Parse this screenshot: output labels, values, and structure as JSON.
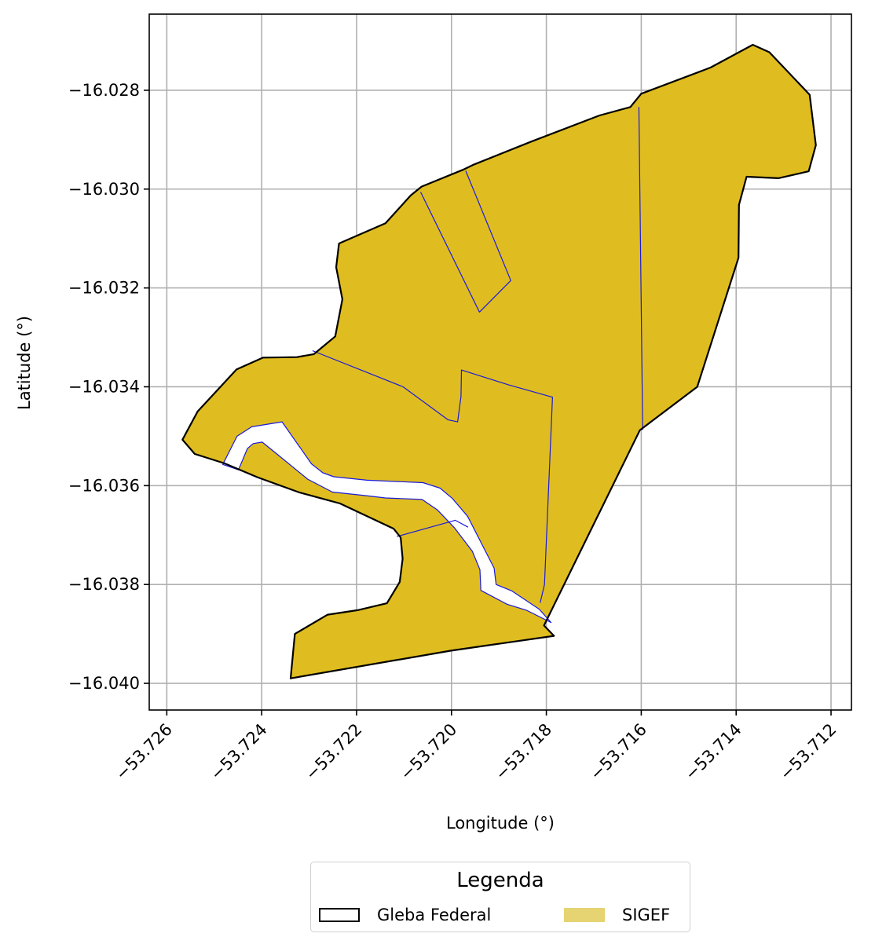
{
  "map": {
    "xlabel": "Longitude (°)",
    "ylabel": "Latitude (°)",
    "xlim": [
      -53.72637,
      -53.71157
    ],
    "ylim": [
      -16.04054,
      -16.02646
    ],
    "x_ticks": [
      {
        "value": -53.726,
        "label": "−53.726"
      },
      {
        "value": -53.724,
        "label": "−53.724"
      },
      {
        "value": -53.722,
        "label": "−53.722"
      },
      {
        "value": -53.72,
        "label": "−53.720"
      },
      {
        "value": -53.718,
        "label": "−53.718"
      },
      {
        "value": -53.716,
        "label": "−53.716"
      },
      {
        "value": -53.714,
        "label": "−53.714"
      },
      {
        "value": -53.712,
        "label": "−53.712"
      }
    ],
    "y_ticks": [
      {
        "value": -16.028,
        "label": "−16.028"
      },
      {
        "value": -16.03,
        "label": "−16.030"
      },
      {
        "value": -16.032,
        "label": "−16.032"
      },
      {
        "value": -16.034,
        "label": "−16.034"
      },
      {
        "value": -16.036,
        "label": "−16.036"
      },
      {
        "value": -16.038,
        "label": "−16.038"
      },
      {
        "value": -16.04,
        "label": "−16.040"
      }
    ],
    "grid": true,
    "colors": {
      "sigef_fill": "#dfbd20",
      "sigef_border": "#1a1adc",
      "gleba_border": "#000000",
      "legend_sigef": "#e6d372"
    },
    "layers": {
      "sigef_area": [
        [
          -53.72567,
          -16.03507
        ],
        [
          -53.72535,
          -16.0345
        ],
        [
          -53.72453,
          -16.03365
        ],
        [
          -53.72397,
          -16.03341
        ],
        [
          -53.72326,
          -16.0334
        ],
        [
          -53.7229,
          -16.03334
        ],
        [
          -53.72245,
          -16.03298
        ],
        [
          -53.7223,
          -16.03223
        ],
        [
          -53.72243,
          -16.03158
        ],
        [
          -53.72237,
          -16.0311
        ],
        [
          -53.72139,
          -16.03069
        ],
        [
          -53.72086,
          -16.03013
        ],
        [
          -53.72063,
          -16.02995
        ],
        [
          -53.71976,
          -16.02961
        ],
        [
          -53.71952,
          -16.0295
        ],
        [
          -53.71832,
          -16.02904
        ],
        [
          -53.71688,
          -16.02851
        ],
        [
          -53.71623,
          -16.02834
        ],
        [
          -53.716,
          -16.02807
        ],
        [
          -53.71454,
          -16.02754
        ],
        [
          -53.71365,
          -16.02708
        ],
        [
          -53.7133,
          -16.02723
        ],
        [
          -53.71245,
          -16.02809
        ],
        [
          -53.71232,
          -16.02911
        ],
        [
          -53.71247,
          -16.02964
        ],
        [
          -53.71311,
          -16.02978
        ],
        [
          -53.71378,
          -16.02975
        ],
        [
          -53.71394,
          -16.03032
        ],
        [
          -53.71395,
          -16.03139
        ],
        [
          -53.71482,
          -16.034
        ],
        [
          -53.71603,
          -16.03488
        ],
        [
          -53.71781,
          -16.03836
        ],
        [
          -53.71805,
          -16.03883
        ],
        [
          -53.71784,
          -16.03904
        ],
        [
          -53.72002,
          -16.03934
        ],
        [
          -53.72339,
          -16.0399
        ],
        [
          -53.7233,
          -16.039
        ],
        [
          -53.72261,
          -16.03861
        ],
        [
          -53.72198,
          -16.03852
        ],
        [
          -53.72136,
          -16.03838
        ],
        [
          -53.72109,
          -16.03795
        ],
        [
          -53.72103,
          -16.03748
        ],
        [
          -53.72107,
          -16.03705
        ],
        [
          -53.72122,
          -16.03687
        ],
        [
          -53.72235,
          -16.03636
        ],
        [
          -53.7232,
          -16.03614
        ],
        [
          -53.72409,
          -16.03583
        ],
        [
          -53.72478,
          -16.03555
        ],
        [
          -53.72541,
          -16.03536
        ]
      ],
      "road_strip": [
        [
          -53.72482,
          -16.03557
        ],
        [
          -53.72452,
          -16.035
        ],
        [
          -53.72421,
          -16.03481
        ],
        [
          -53.72357,
          -16.03471
        ],
        [
          -53.72295,
          -16.03556
        ],
        [
          -53.72271,
          -16.03574
        ],
        [
          -53.72248,
          -16.03582
        ],
        [
          -53.72178,
          -16.03589
        ],
        [
          -53.7206,
          -16.03594
        ],
        [
          -53.72024,
          -16.03605
        ],
        [
          -53.71998,
          -16.03626
        ],
        [
          -53.71966,
          -16.03662
        ],
        [
          -53.7191,
          -16.03767
        ],
        [
          -53.71906,
          -16.038
        ],
        [
          -53.71873,
          -16.03813
        ],
        [
          -53.71815,
          -16.0385
        ],
        [
          -53.7179,
          -16.03877
        ],
        [
          -53.71842,
          -16.03852
        ],
        [
          -53.71883,
          -16.0384
        ],
        [
          -53.71938,
          -16.03812
        ],
        [
          -53.7194,
          -16.0377
        ],
        [
          -53.71956,
          -16.03733
        ],
        [
          -53.71994,
          -16.03685
        ],
        [
          -53.7203,
          -16.03649
        ],
        [
          -53.72062,
          -16.03628
        ],
        [
          -53.72139,
          -16.03625
        ],
        [
          -53.72183,
          -16.0362
        ],
        [
          -53.72251,
          -16.03613
        ],
        [
          -53.72303,
          -16.03587
        ],
        [
          -53.72368,
          -16.03536
        ],
        [
          -53.72399,
          -16.03512
        ],
        [
          -53.72418,
          -16.03515
        ],
        [
          -53.7243,
          -16.03525
        ],
        [
          -53.72449,
          -16.03568
        ]
      ],
      "sigef_lines": [
        [
          [
            -53.72293,
            -16.03327
          ],
          [
            -53.72102,
            -16.034
          ],
          [
            -53.72007,
            -16.03467
          ],
          [
            -53.71987,
            -16.03471
          ],
          [
            -53.7198,
            -16.0342
          ],
          [
            -53.71979,
            -16.03366
          ],
          [
            -53.7188,
            -16.03396
          ],
          [
            -53.71787,
            -16.03421
          ],
          [
            -53.71804,
            -16.038
          ],
          [
            -53.71813,
            -16.03837
          ]
        ],
        [
          [
            -53.72065,
            -16.03006
          ],
          [
            -53.71941,
            -16.03249
          ],
          [
            -53.71875,
            -16.03185
          ],
          [
            -53.7197,
            -16.02963
          ]
        ],
        [
          [
            -53.71605,
            -16.02834
          ],
          [
            -53.71597,
            -16.03487
          ]
        ],
        [
          [
            -53.72115,
            -16.03703
          ],
          [
            -53.71992,
            -16.0367
          ],
          [
            -53.71965,
            -16.03684
          ]
        ]
      ],
      "gleba_boundary": [
        [
          -53.72567,
          -16.03507
        ],
        [
          -53.72535,
          -16.0345
        ],
        [
          -53.72453,
          -16.03365
        ],
        [
          -53.72397,
          -16.03341
        ],
        [
          -53.72326,
          -16.0334
        ],
        [
          -53.7229,
          -16.03334
        ],
        [
          -53.72245,
          -16.03298
        ],
        [
          -53.7223,
          -16.03223
        ],
        [
          -53.72243,
          -16.03158
        ],
        [
          -53.72237,
          -16.0311
        ],
        [
          -53.72139,
          -16.03069
        ],
        [
          -53.72086,
          -16.03013
        ],
        [
          -53.72063,
          -16.02995
        ],
        [
          -53.71976,
          -16.02961
        ],
        [
          -53.71952,
          -16.0295
        ],
        [
          -53.71832,
          -16.02904
        ],
        [
          -53.71688,
          -16.02851
        ],
        [
          -53.71623,
          -16.02834
        ],
        [
          -53.716,
          -16.02807
        ],
        [
          -53.71454,
          -16.02754
        ],
        [
          -53.71365,
          -16.02708
        ],
        [
          -53.7133,
          -16.02723
        ],
        [
          -53.71245,
          -16.02809
        ],
        [
          -53.71232,
          -16.02911
        ],
        [
          -53.71247,
          -16.02964
        ],
        [
          -53.71311,
          -16.02978
        ],
        [
          -53.71378,
          -16.02975
        ],
        [
          -53.71394,
          -16.03032
        ],
        [
          -53.71395,
          -16.03139
        ],
        [
          -53.71482,
          -16.034
        ],
        [
          -53.71603,
          -16.03488
        ],
        [
          -53.71781,
          -16.03836
        ],
        [
          -53.71805,
          -16.03883
        ],
        [
          -53.71784,
          -16.03904
        ],
        [
          -53.72002,
          -16.03934
        ],
        [
          -53.72339,
          -16.0399
        ],
        [
          -53.7233,
          -16.039
        ],
        [
          -53.72261,
          -16.03861
        ],
        [
          -53.72198,
          -16.03852
        ],
        [
          -53.72136,
          -16.03838
        ],
        [
          -53.72109,
          -16.03795
        ],
        [
          -53.72103,
          -16.03748
        ],
        [
          -53.72107,
          -16.03705
        ],
        [
          -53.72122,
          -16.03687
        ],
        [
          -53.72235,
          -16.03636
        ],
        [
          -53.7232,
          -16.03614
        ],
        [
          -53.72409,
          -16.03583
        ],
        [
          -53.72478,
          -16.03555
        ],
        [
          -53.72541,
          -16.03536
        ]
      ]
    }
  },
  "legend": {
    "title": "Legenda",
    "items": [
      {
        "label": "Gleba Federal"
      },
      {
        "label": "SIGEF"
      }
    ]
  }
}
